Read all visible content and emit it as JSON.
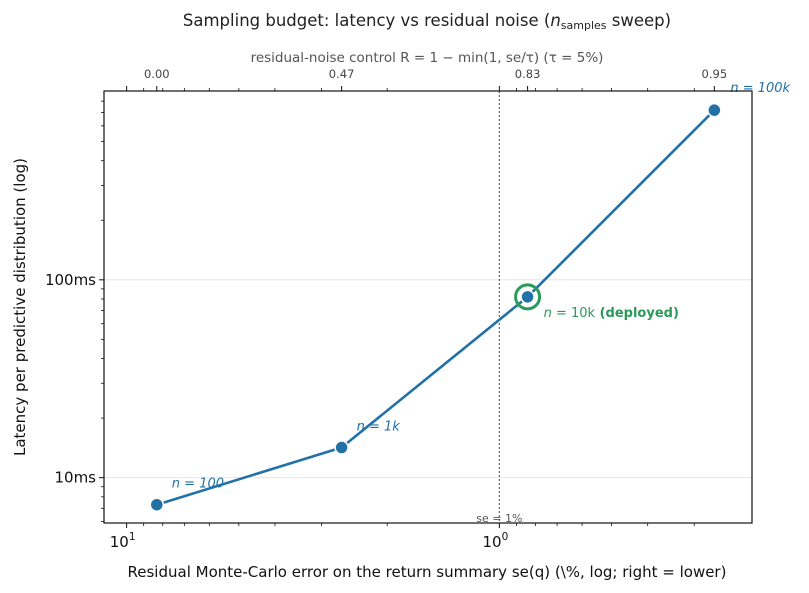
{
  "chart_data": {
    "type": "line",
    "title_prefix": "Sampling budget: latency vs residual noise (",
    "title_var": "n",
    "title_sub": "samples",
    "title_suffix": " sweep)",
    "top_axis_label": "residual-noise control R = 1 − min(1, se/τ) (τ = 5%)",
    "xlabel": "Residual Monte-Carlo error on the return summary se(q) (\\%, log; right = lower)",
    "ylabel": "Latency per predictive distribution (log)",
    "x_scale": "log-reversed",
    "y_scale": "log",
    "xlim": [
      11.5,
      0.21
    ],
    "ylim": [
      5.9,
      900
    ],
    "x_ticks": [
      {
        "value": 10,
        "label": "10",
        "exp": "1"
      },
      {
        "value": 1,
        "label": "10",
        "exp": "0"
      }
    ],
    "y_ticks": [
      {
        "value": 10,
        "label": "10ms"
      },
      {
        "value": 100,
        "label": "100ms"
      }
    ],
    "top_ticks": [
      {
        "x": 8.3,
        "label": "0.00"
      },
      {
        "x": 2.65,
        "label": "0.47"
      },
      {
        "x": 0.84,
        "label": "0.83"
      },
      {
        "x": 0.265,
        "label": "0.95"
      }
    ],
    "reference_line": {
      "x": 1.0,
      "label": "se = 1%"
    },
    "series": [
      {
        "color": "#2271a6",
        "points": [
          {
            "n": 100,
            "se": 8.3,
            "latency": 7.3,
            "label": "n = 100"
          },
          {
            "n": 1000,
            "se": 2.65,
            "latency": 14.2,
            "label": "n = 1k"
          },
          {
            "n": 10000,
            "se": 0.84,
            "latency": 82,
            "label": "n = 10k",
            "label_extra": "(deployed)",
            "deployed": true
          },
          {
            "n": 100000,
            "se": 0.265,
            "latency": 720,
            "label": "n = 100k"
          }
        ]
      }
    ],
    "deployed_color": "#2a9a5a",
    "grid": "horizontal-major"
  }
}
